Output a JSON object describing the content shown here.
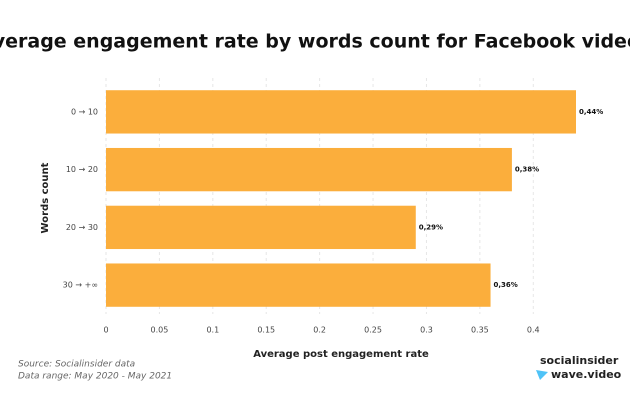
{
  "chart_data": {
    "type": "bar",
    "orientation": "horizontal",
    "title": "Average engagement rate by words count for Facebook videos",
    "categories": [
      "0 → 10",
      "10 → 20",
      "20 → 30",
      "30 → +∞"
    ],
    "values": [
      0.44,
      0.38,
      0.29,
      0.36
    ],
    "value_labels": [
      "0,44%",
      "0,38%",
      "0,29%",
      "0,36%"
    ],
    "color": "#fbae3c",
    "xlim": [
      0,
      0.44
    ],
    "xticks": [
      0,
      0.05,
      0.1,
      0.15,
      0.2,
      0.25,
      0.3,
      0.35,
      0.4
    ],
    "xlabel": "Average post engagement rate",
    "ylabel": "Words count",
    "grid": true,
    "source": "Source: Socialinsider data",
    "date_range": "Data range: May 2020 - May 2021",
    "branding": [
      "socialinsider",
      "wave.video"
    ]
  }
}
